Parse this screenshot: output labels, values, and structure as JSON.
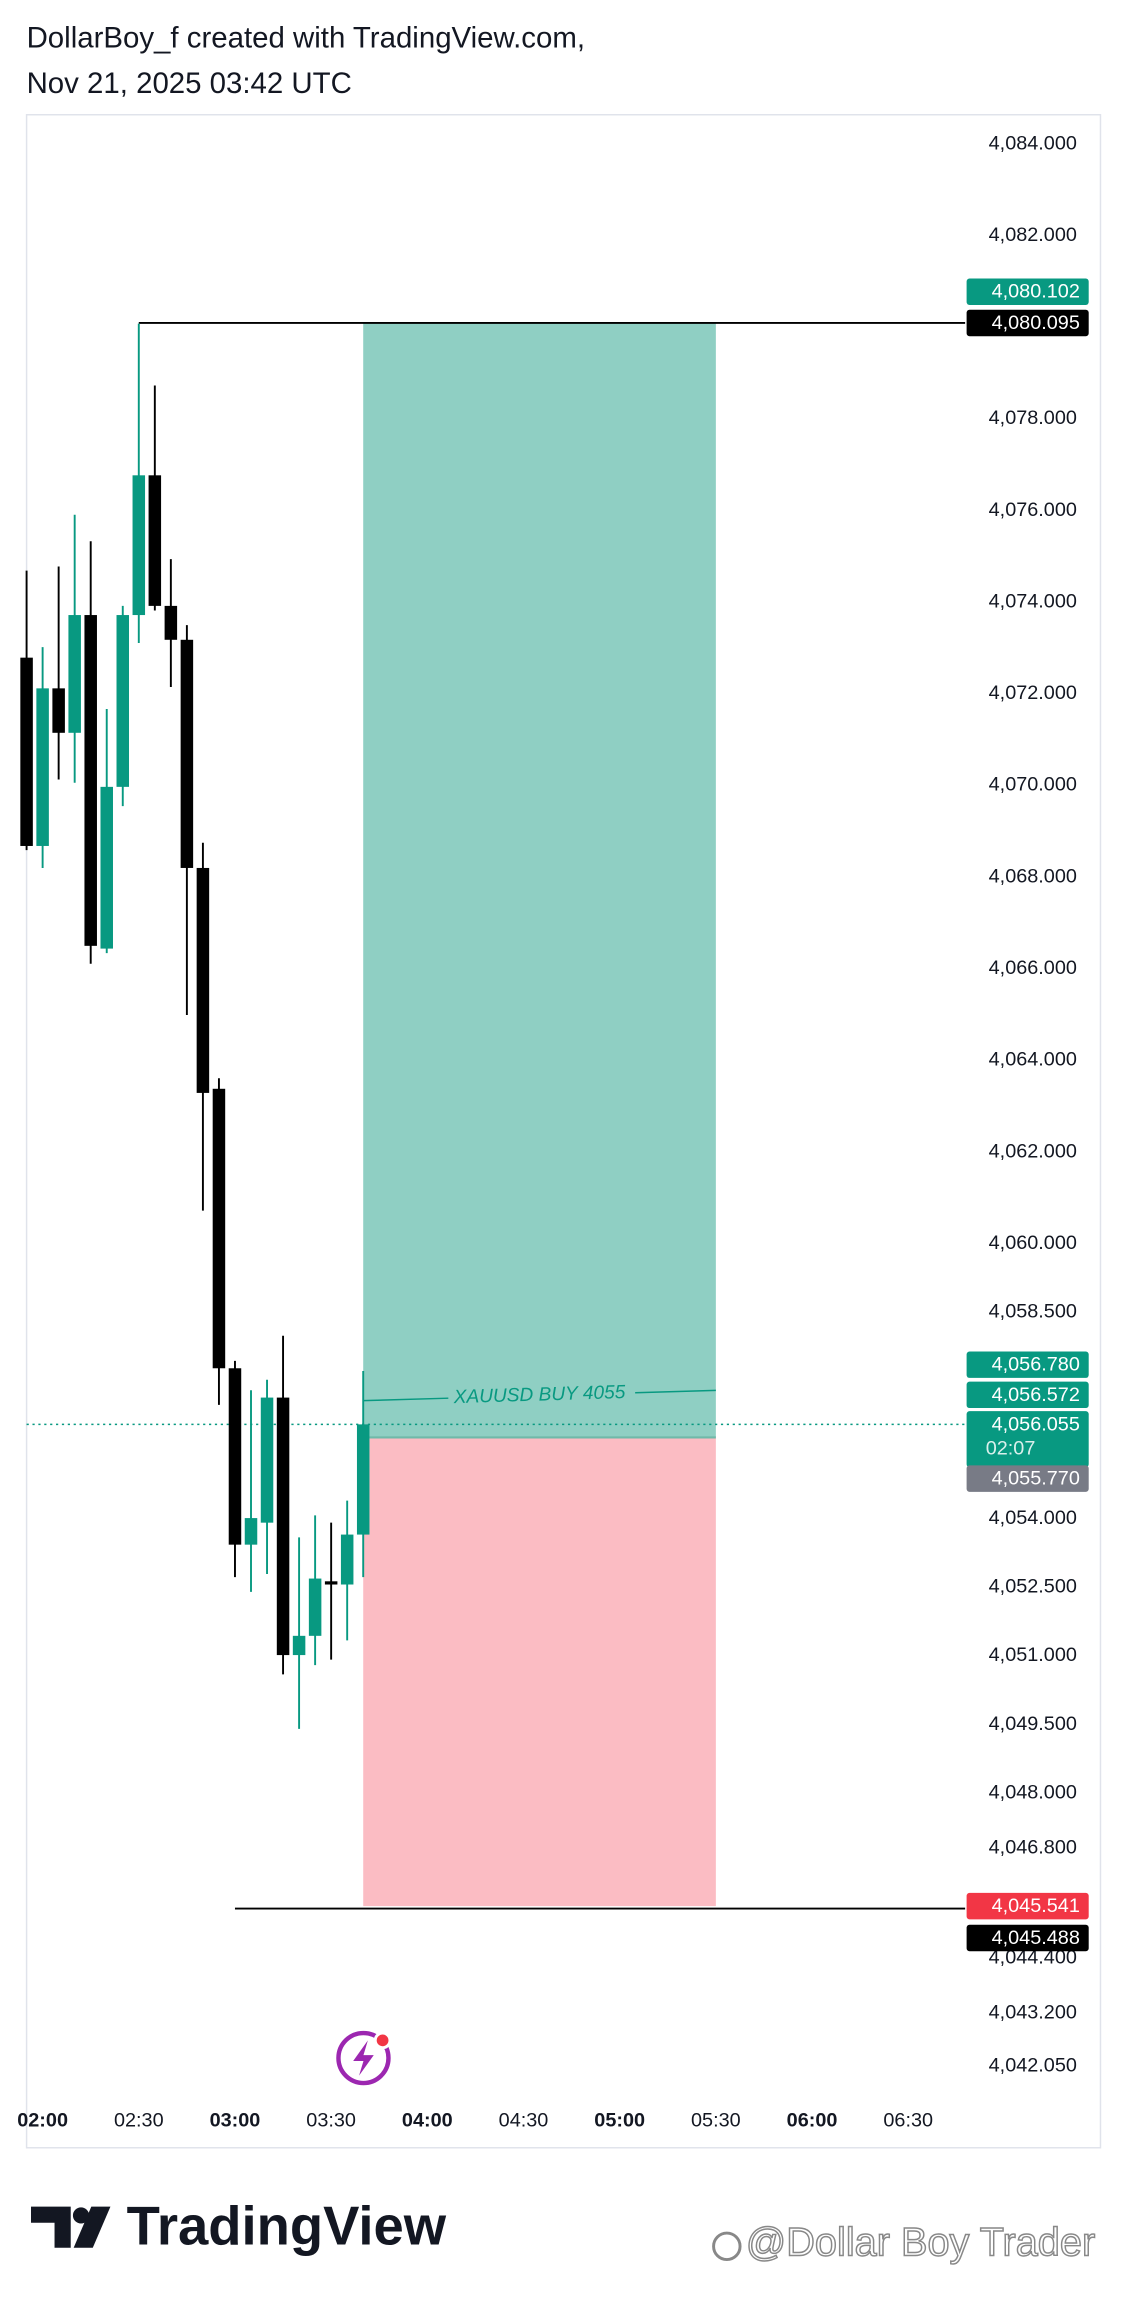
{
  "header": {
    "line1": "DollarBoy_f created with TradingView.com,",
    "line2": "Nov 21, 2025 03:42 UTC"
  },
  "chart_data": {
    "type": "candlestick",
    "up_color": "#089981",
    "down_color": "#000000",
    "xlim": [
      "01:55",
      "06:45"
    ],
    "ylim": [
      4041.39,
      4084.64
    ],
    "xticks": [
      "02:00",
      "02:30",
      "03:00",
      "03:30",
      "04:00",
      "04:30",
      "05:00",
      "05:30",
      "06:00",
      "06:30"
    ],
    "yticks": [
      {
        "value": 4084,
        "label": "4,084.000"
      },
      {
        "value": 4082,
        "label": "4,082.000"
      },
      {
        "value": 4078,
        "label": "4,078.000"
      },
      {
        "value": 4076,
        "label": "4,076.000"
      },
      {
        "value": 4074,
        "label": "4,074.000"
      },
      {
        "value": 4072,
        "label": "4,072.000"
      },
      {
        "value": 4070,
        "label": "4,070.000"
      },
      {
        "value": 4068,
        "label": "4,068.000"
      },
      {
        "value": 4066,
        "label": "4,066.000"
      },
      {
        "value": 4064,
        "label": "4,064.000"
      },
      {
        "value": 4062,
        "label": "4,062.000"
      },
      {
        "value": 4060,
        "label": "4,060.000"
      },
      {
        "value": 4058.5,
        "label": "4,058.500"
      },
      {
        "value": 4054,
        "label": "4,054.000"
      },
      {
        "value": 4052.5,
        "label": "4,052.500"
      },
      {
        "value": 4051,
        "label": "4,051.000"
      },
      {
        "value": 4049.5,
        "label": "4,049.500"
      },
      {
        "value": 4048,
        "label": "4,048.000"
      },
      {
        "value": 4046.8,
        "label": "4,046.800"
      },
      {
        "value": 4044.4,
        "label": "4,044.400"
      },
      {
        "value": 4043.2,
        "label": "4,043.200"
      },
      {
        "value": 4042.05,
        "label": "4,042.050"
      }
    ],
    "candles": [
      {
        "x": "01:55",
        "open": 4072.79,
        "high": 4074.69,
        "low": 4068.59,
        "close": 4068.68
      },
      {
        "x": "02:00",
        "open": 4068.68,
        "high": 4073.02,
        "low": 4068.2,
        "close": 4072.12
      },
      {
        "x": "02:05",
        "open": 4072.12,
        "high": 4074.78,
        "low": 4070.13,
        "close": 4071.15
      },
      {
        "x": "02:10",
        "open": 4071.15,
        "high": 4075.91,
        "low": 4070.06,
        "close": 4073.72
      },
      {
        "x": "02:15",
        "open": 4073.72,
        "high": 4075.33,
        "low": 4066.11,
        "close": 4066.5
      },
      {
        "x": "02:20",
        "open": 4066.44,
        "high": 4071.67,
        "low": 4066.34,
        "close": 4069.97
      },
      {
        "x": "02:25",
        "open": 4069.97,
        "high": 4073.92,
        "low": 4069.55,
        "close": 4073.72
      },
      {
        "x": "02:30",
        "open": 4073.72,
        "high": 4080.08,
        "low": 4073.11,
        "close": 4076.77
      },
      {
        "x": "02:35",
        "open": 4076.77,
        "high": 4078.73,
        "low": 4073.82,
        "close": 4073.92
      },
      {
        "x": "02:40",
        "open": 4073.92,
        "high": 4074.94,
        "low": 4072.15,
        "close": 4073.18
      },
      {
        "x": "02:45",
        "open": 4073.18,
        "high": 4073.5,
        "low": 4064.99,
        "close": 4068.2
      },
      {
        "x": "02:50",
        "open": 4068.2,
        "high": 4068.75,
        "low": 4060.72,
        "close": 4063.29
      },
      {
        "x": "02:55",
        "open": 4063.38,
        "high": 4063.61,
        "low": 4056.48,
        "close": 4057.28
      },
      {
        "x": "03:00",
        "open": 4057.28,
        "high": 4057.44,
        "low": 4052.72,
        "close": 4053.43
      },
      {
        "x": "03:05",
        "open": 4053.43,
        "high": 4056.8,
        "low": 4052.4,
        "close": 4054.01
      },
      {
        "x": "03:10",
        "open": 4053.91,
        "high": 4057.03,
        "low": 4052.79,
        "close": 4056.64
      },
      {
        "x": "03:15",
        "open": 4056.64,
        "high": 4057.99,
        "low": 4050.6,
        "close": 4051.02
      },
      {
        "x": "03:20",
        "open": 4051.02,
        "high": 4053.59,
        "low": 4049.41,
        "close": 4051.44
      },
      {
        "x": "03:25",
        "open": 4051.44,
        "high": 4054.07,
        "low": 4050.8,
        "close": 4052.69
      },
      {
        "x": "03:30",
        "open": 4052.63,
        "high": 4053.91,
        "low": 4050.92,
        "close": 4052.56
      },
      {
        "x": "03:35",
        "open": 4052.56,
        "high": 4054.39,
        "low": 4051.34,
        "close": 4053.65
      },
      {
        "x": "03:40",
        "open": 4053.65,
        "high": 4057.22,
        "low": 4052.72,
        "close": 4056.055
      }
    ],
    "lines": [
      {
        "value": 4080.095,
        "label": "4,080.095",
        "start": "02:30",
        "color": "#000000"
      },
      {
        "value": 4045.488,
        "label": "4,045.488",
        "start": "03:00",
        "color": "#000000"
      }
    ],
    "position": {
      "start": "03:40",
      "end": "05:30",
      "note": "XAUUSD BUY 4055",
      "target": {
        "value": 4080.102,
        "label": "4,080.102",
        "color": "#089981",
        "fill": "#8fcfc3"
      },
      "entry": {
        "value": 4055.77,
        "label": "4,055.770",
        "color": "#787b86"
      },
      "stop": {
        "value": 4045.541,
        "label": "4,045.541",
        "color": "#f23645",
        "fill": "#fbbcc3"
      }
    },
    "price_labels": [
      {
        "value": 4056.78,
        "label": "4,056.780",
        "color": "#089981"
      },
      {
        "value": 4056.572,
        "label": "4,056.572",
        "color": "#089981"
      }
    ],
    "current_price": {
      "value": 4056.055,
      "label": "4,056.055",
      "countdown": "02:07",
      "color": "#089981"
    }
  },
  "footer": {
    "logo": "TradingView",
    "watermark": "@Dollar Boy Trader"
  }
}
